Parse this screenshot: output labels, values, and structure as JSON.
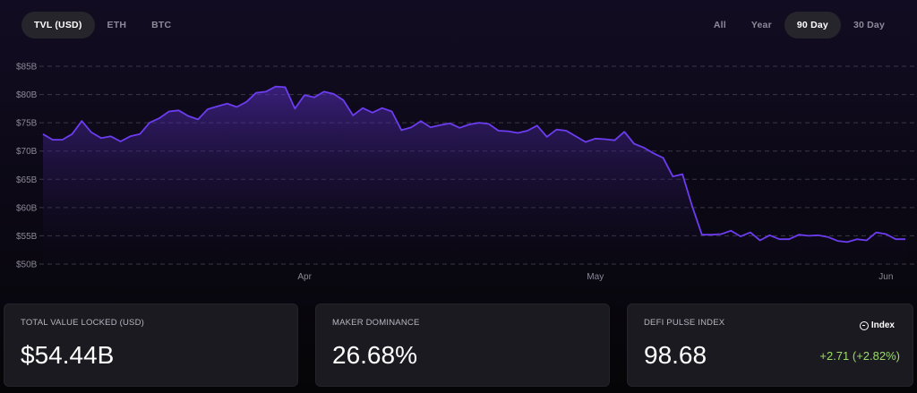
{
  "top_tabs": {
    "currency": [
      "TVL (USD)",
      "ETH",
      "BTC"
    ],
    "currency_active": 0,
    "range": [
      "All",
      "Year",
      "90 Day",
      "30 Day"
    ],
    "range_active": 2
  },
  "colors": {
    "line": "#6c3cf0",
    "accent_positive": "#9bdc6a"
  },
  "chart_data": {
    "type": "area",
    "title": "",
    "xlabel": "",
    "ylabel": "",
    "ylim": [
      50,
      85
    ],
    "y_ticks": [
      "$50B",
      "$55B",
      "$60B",
      "$65B",
      "$70B",
      "$75B",
      "$80B",
      "$85B"
    ],
    "y_tick_values": [
      50,
      55,
      60,
      65,
      70,
      75,
      80,
      85
    ],
    "x_ticks": [
      {
        "label": "Apr",
        "index": 27
      },
      {
        "label": "May",
        "index": 57
      },
      {
        "label": "Jun",
        "index": 87
      }
    ],
    "grid": true,
    "series": [
      {
        "values": [
          73.0,
          72.0,
          72.0,
          73.0,
          75.3,
          73.3,
          72.3,
          72.6,
          71.7,
          72.6,
          73.0,
          75.0,
          75.8,
          77.0,
          77.2,
          76.2,
          75.6,
          77.4,
          77.9,
          78.4,
          77.8,
          78.7,
          80.3,
          80.5,
          81.4,
          81.3,
          77.5,
          79.9,
          79.5,
          80.5,
          80.1,
          79.0,
          76.3,
          77.6,
          76.8,
          77.6,
          77.0,
          73.7,
          74.2,
          75.3,
          74.2,
          74.6,
          74.9,
          74.1,
          74.7,
          75.0,
          74.8,
          73.6,
          73.5,
          73.2,
          73.6,
          74.5,
          72.5,
          73.8,
          73.6,
          72.6,
          71.6,
          72.2,
          72.1,
          71.9,
          73.4,
          71.3,
          70.6,
          69.6,
          68.8,
          65.5,
          65.9,
          60.2,
          55.2,
          55.2,
          55.3,
          55.9,
          54.9,
          55.6,
          54.2,
          55.1,
          54.4,
          54.4,
          55.2,
          55.0,
          55.1,
          54.8,
          54.1,
          53.9,
          54.4,
          54.2,
          55.6,
          55.3,
          54.4,
          54.4
        ]
      }
    ]
  },
  "cards": [
    {
      "label": "TOTAL VALUE LOCKED (USD)",
      "value": "$54.44B"
    },
    {
      "label": "MAKER DOMINANCE",
      "value": "26.68%"
    },
    {
      "label": "DEFI PULSE INDEX",
      "value": "98.68",
      "change": "+2.71  (+2.82%)",
      "badge": "Index"
    }
  ]
}
